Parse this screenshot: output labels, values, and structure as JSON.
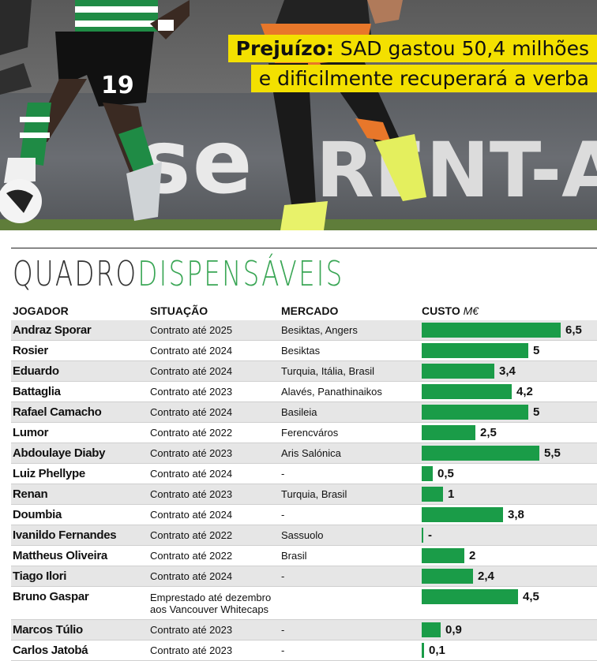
{
  "headline": {
    "lead": "Prejuízo:",
    "line1_rest": " SAD gastou 50,4 milhões",
    "line2": "e dificilmente recuperará a verba"
  },
  "photo": {
    "jersey_number": "19",
    "board_text": "se",
    "board_text_2": "RENT-A"
  },
  "table": {
    "title_part1": "QUADRO",
    "title_part2": "DISPENSÁVEIS",
    "headers": {
      "jogador": "JOGADOR",
      "situacao": "SITUAÇÃO",
      "mercado": "MERCADO",
      "custo": "CUSTO",
      "custo_unit": "M€"
    },
    "bar_max": 6.5,
    "colors": {
      "bar": "#1a9c48",
      "title_accent": "#3aa655",
      "headline_bg": "#f3e000"
    },
    "rows": [
      {
        "jogador": "Andraz Sporar",
        "situacao": "Contrato até 2025",
        "mercado": "Besiktas, Angers",
        "custo": 6.5,
        "custo_label": "6,5"
      },
      {
        "jogador": "Rosier",
        "situacao": "Contrato até 2024",
        "mercado": "Besiktas",
        "custo": 5,
        "custo_label": "5"
      },
      {
        "jogador": "Eduardo",
        "situacao": "Contrato até 2024",
        "mercado": "Turquia, Itália, Brasil",
        "custo": 3.4,
        "custo_label": "3,4"
      },
      {
        "jogador": "Battaglia",
        "situacao": "Contrato até 2023",
        "mercado": "Alavés, Panathinaikos",
        "custo": 4.2,
        "custo_label": "4,2"
      },
      {
        "jogador": "Rafael Camacho",
        "situacao": "Contrato até 2024",
        "mercado": "Basileia",
        "custo": 5,
        "custo_label": "5"
      },
      {
        "jogador": "Lumor",
        "situacao": "Contrato até 2022",
        "mercado": "Ferencváros",
        "custo": 2.5,
        "custo_label": "2,5"
      },
      {
        "jogador": "Abdoulaye Diaby",
        "situacao": "Contrato até 2023",
        "mercado": "Aris Salónica",
        "custo": 5.5,
        "custo_label": "5,5"
      },
      {
        "jogador": "Luiz Phellype",
        "situacao": "Contrato até 2024",
        "mercado": "-",
        "custo": 0.5,
        "custo_label": "0,5"
      },
      {
        "jogador": "Renan",
        "situacao": "Contrato até 2023",
        "mercado": "Turquia, Brasil",
        "custo": 1,
        "custo_label": "1"
      },
      {
        "jogador": "Doumbia",
        "situacao": "Contrato até 2024",
        "mercado": "-",
        "custo": 3.8,
        "custo_label": "3,8"
      },
      {
        "jogador": "Ivanildo Fernandes",
        "situacao": "Contrato até 2022",
        "mercado": "Sassuolo",
        "custo": 0,
        "custo_label": "-"
      },
      {
        "jogador": "Mattheus Oliveira",
        "situacao": "Contrato até 2022",
        "mercado": "Brasil",
        "custo": 2,
        "custo_label": "2"
      },
      {
        "jogador": "Tiago Ilori",
        "situacao": "Contrato até 2024",
        "mercado": "-",
        "custo": 2.4,
        "custo_label": "2,4"
      },
      {
        "jogador": "Bruno Gaspar",
        "situacao": "Emprestado até dezembro aos Vancouver Whitecaps",
        "mercado": "",
        "custo": 4.5,
        "custo_label": "4,5",
        "tall": true
      },
      {
        "jogador": "Marcos Túlio",
        "situacao": "Contrato até 2023",
        "mercado": "-",
        "custo": 0.9,
        "custo_label": "0,9"
      },
      {
        "jogador": "Carlos Jatobá",
        "situacao": "Contrato até 2023",
        "mercado": "-",
        "custo": 0.1,
        "custo_label": "0,1"
      }
    ]
  }
}
